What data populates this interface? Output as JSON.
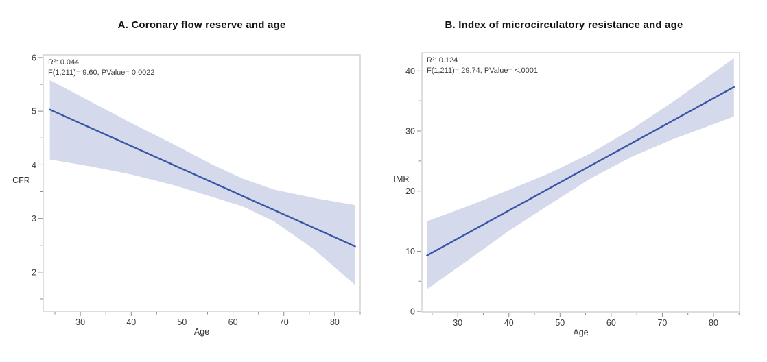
{
  "page": {
    "background": "#ffffff"
  },
  "chart_data": [
    {
      "type": "line",
      "panel": "A",
      "title": "A. Coronary flow reserve and age",
      "xlabel": "Age",
      "ylabel": "CFR",
      "annotation": [
        "R²: 0.044",
        "F(1,211)= 9.60, PValue= 0.0022"
      ],
      "xlim": [
        22.7,
        85.0
      ],
      "ylim": [
        1.27,
        6.05
      ],
      "x_ticks": [
        30,
        40,
        50,
        60,
        70,
        80
      ],
      "x_minor_ticks": [
        25,
        35,
        45,
        55,
        65,
        75,
        85
      ],
      "y_ticks": [
        2,
        3,
        4,
        5,
        6
      ],
      "y_minor_ticks": [
        1.5,
        2.5,
        3.5,
        4.5,
        5.5
      ],
      "grid": false,
      "legend": "none",
      "series": [
        {
          "name": "linear-fit",
          "x": [
            24,
            84
          ],
          "y": [
            5.03,
            2.48
          ]
        }
      ],
      "band": {
        "name": "95%-confidence-band",
        "x": [
          24,
          32,
          40,
          48,
          56,
          62,
          68,
          76,
          84
        ],
        "upper": [
          5.58,
          5.18,
          4.78,
          4.4,
          4.0,
          3.74,
          3.54,
          3.38,
          3.25
        ],
        "lower": [
          4.1,
          3.97,
          3.82,
          3.63,
          3.4,
          3.22,
          2.95,
          2.42,
          1.76
        ]
      },
      "colors": {
        "line": "#3A57A7",
        "band": "#D4DAEB",
        "frame": "#C7C7C7",
        "tick": "#8C8C8C",
        "tick_label": "#3D3D3D"
      }
    },
    {
      "type": "line",
      "panel": "B",
      "title": "B. Index of microcirculatory resistance and age",
      "xlabel": "Age",
      "ylabel": "IMR",
      "annotation": [
        "R²: 0.124",
        "F(1,211)= 29.74, PValue= <.0001"
      ],
      "xlim": [
        23.0,
        85.1
      ],
      "ylim": [
        -0.1,
        43.0
      ],
      "x_ticks": [
        30,
        40,
        50,
        60,
        70,
        80
      ],
      "x_minor_ticks": [
        25,
        35,
        45,
        55,
        65,
        75,
        85
      ],
      "y_ticks": [
        0,
        10,
        20,
        30,
        40
      ],
      "y_minor_ticks": [
        5,
        15,
        25,
        35
      ],
      "grid": false,
      "legend": "none",
      "series": [
        {
          "name": "linear-fit",
          "x": [
            24,
            84
          ],
          "y": [
            9.3,
            37.3
          ]
        }
      ],
      "band": {
        "name": "95%-confidence-band",
        "x": [
          24,
          32,
          40,
          48,
          56,
          64,
          72,
          84
        ],
        "upper": [
          15.0,
          17.5,
          20.2,
          23.0,
          26.3,
          30.3,
          34.8,
          42.1
        ],
        "lower": [
          3.7,
          8.5,
          13.4,
          17.8,
          22.1,
          25.7,
          28.6,
          32.4
        ]
      },
      "colors": {
        "line": "#3A57A7",
        "band": "#D4DAEB",
        "frame": "#C7C7C7",
        "tick": "#8C8C8C",
        "tick_label": "#3D3D3D"
      }
    }
  ]
}
